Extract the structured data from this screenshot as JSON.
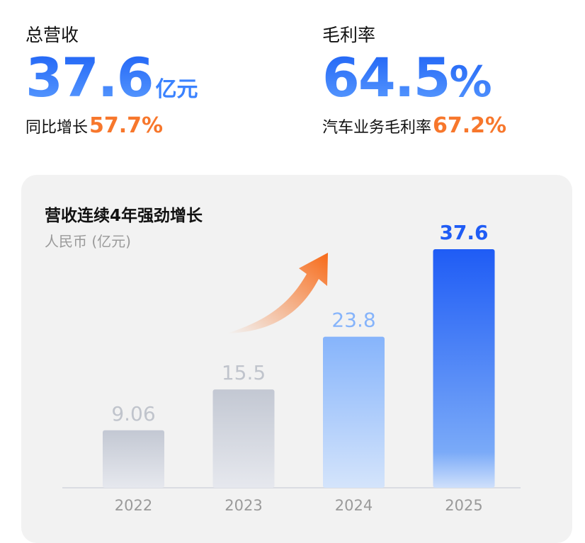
{
  "kpis": {
    "revenue": {
      "label": "总营收",
      "value": "37.6",
      "unit": "亿元",
      "sub_label": "同比增长",
      "sub_value": "57.7%"
    },
    "margin": {
      "label": "毛利率",
      "value": "64.5",
      "unit": "%",
      "sub_label": "汽车业务毛利率",
      "sub_value": "67.2%"
    }
  },
  "colors": {
    "accent_blue": "#1f5cf5",
    "accent_orange": "#f7772c",
    "gray_bar": "#c3c8d3",
    "light_blue": "#86b4fb"
  },
  "chart_data": {
    "type": "bar",
    "title": "营收连续4年强劲增长",
    "ylabel": "人民币 (亿元)",
    "xlabel": "",
    "categories": [
      "2022",
      "2023",
      "2024",
      "2025"
    ],
    "values": [
      9.06,
      15.5,
      23.8,
      37.6
    ],
    "value_labels": [
      "9.06",
      "15.5",
      "23.8",
      "37.6"
    ],
    "ylim": [
      0,
      37.6
    ],
    "grid": false,
    "annotation": "upward-trend-arrow"
  }
}
